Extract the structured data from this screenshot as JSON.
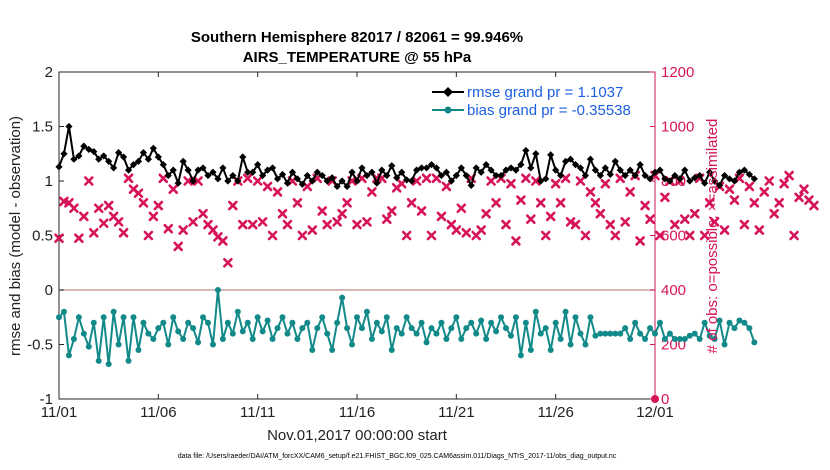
{
  "chart_data": {
    "type": "line",
    "title": "Southern Hemisphere 82017 / 82061 = 99.946%",
    "subtitle": "AIRS_TEMPERATURE @ 55 hPa",
    "xlabel": "Nov.01,2017 00:00:00 start",
    "ylabel": "rmse and bias (model - observation)",
    "ylabel_right": "# of obs: o=possible; ×=assimilated",
    "footnote": "data file: /Users/raeder/DAI/ATM_forcXX/CAM6_setup/f.e21.FHIST_BGC.f09_025.CAM6assim.011/Diags_NTrS_2017-11/obs_diag_output.nc",
    "xlim": [
      0,
      30
    ],
    "ylim": [
      -1,
      2
    ],
    "ylim_right": [
      0,
      1200
    ],
    "x_ticks": [
      0,
      5,
      10,
      15,
      20,
      25,
      30
    ],
    "x_tick_labels": [
      "11/01",
      "11/06",
      "11/11",
      "11/16",
      "11/21",
      "11/26",
      "12/01"
    ],
    "y_ticks": [
      -1,
      -0.5,
      0,
      0.5,
      1,
      1.5,
      2
    ],
    "y_tick_labels": [
      "-1",
      "-0.5",
      "0",
      "0.5",
      "1",
      "1.5",
      "2"
    ],
    "y_right_ticks": [
      0,
      200,
      400,
      600,
      800,
      1000,
      1200
    ],
    "y_right_tick_labels": [
      "0",
      "200",
      "400",
      "600",
      "800",
      "1000",
      "1200"
    ],
    "zero_line": 0,
    "legend_position": "top-right",
    "series": [
      {
        "name": "rmse grand pr = 1.1037",
        "color": "#000000",
        "marker": "diamond",
        "x_start": 0,
        "x_step": 0.25,
        "values": [
          1.13,
          1.25,
          1.5,
          1.2,
          1.23,
          1.32,
          1.29,
          1.27,
          1.2,
          1.23,
          1.18,
          1.12,
          1.26,
          1.22,
          1.1,
          1.15,
          1.18,
          1.26,
          1.2,
          1.3,
          1.22,
          1.15,
          1.05,
          1.1,
          0.98,
          1.18,
          1.1,
          1.0,
          1.1,
          1.12,
          1.05,
          1.08,
          1.02,
          1.12,
          1.0,
          1.05,
          1.0,
          1.22,
          1.08,
          1.08,
          1.15,
          1.05,
          1.1,
          1.12,
          1.02,
          1.06,
          0.98,
          1.08,
          1.02,
          0.97,
          1.05,
          1.0,
          1.08,
          1.05,
          1.0,
          1.03,
          0.95,
          1.0,
          0.95,
          1.08,
          1.0,
          1.12,
          1.05,
          1.08,
          0.98,
          1.1,
          1.05,
          1.14,
          1.03,
          1.08,
          1.01,
          1.0,
          1.1,
          1.12,
          1.12,
          1.15,
          1.12,
          1.05,
          1.08,
          1.0,
          1.05,
          1.12,
          1.05,
          0.96,
          1.12,
          1.08,
          1.15,
          1.1,
          1.05,
          1.05,
          1.1,
          1.12,
          1.1,
          1.15,
          1.28,
          1.12,
          1.25,
          1.0,
          1.02,
          1.24,
          1.1,
          1.05,
          1.18,
          1.2,
          1.15,
          1.12,
          1.05,
          1.2,
          1.1,
          1.05,
          1.12,
          1.06,
          1.18,
          1.1,
          1.05,
          1.1,
          1.05,
          1.15,
          1.05,
          1.02,
          1.08,
          1.1,
          1.02,
          1.0,
          1.05,
          1.02,
          1.1,
          1.0,
          1.03,
          1.05,
          0.98,
          1.08,
          1.0,
          0.96,
          1.05,
          1.02,
          1.0,
          1.08,
          1.1,
          1.06,
          1.02
        ]
      },
      {
        "name": "bias grand pr = -0.35538",
        "color": "#138a8a",
        "marker": "circle",
        "x_start": 0,
        "x_step": 0.25,
        "values": [
          -0.25,
          -0.2,
          -0.6,
          -0.45,
          -0.25,
          -0.4,
          -0.52,
          -0.3,
          -0.65,
          -0.25,
          -0.68,
          -0.2,
          -0.5,
          -0.25,
          -0.65,
          -0.25,
          -0.55,
          -0.3,
          -0.4,
          -0.45,
          -0.35,
          -0.3,
          -0.5,
          -0.25,
          -0.38,
          -0.45,
          -0.3,
          -0.35,
          -0.48,
          -0.25,
          -0.3,
          -0.5,
          0.0,
          -0.45,
          -0.3,
          -0.4,
          -0.2,
          -0.38,
          -0.3,
          -0.45,
          -0.25,
          -0.38,
          -0.28,
          -0.45,
          -0.35,
          -0.25,
          -0.4,
          -0.3,
          -0.45,
          -0.35,
          -0.3,
          -0.55,
          -0.35,
          -0.25,
          -0.4,
          -0.55,
          -0.3,
          -0.07,
          -0.35,
          -0.5,
          -0.25,
          -0.35,
          -0.2,
          -0.45,
          -0.3,
          -0.38,
          -0.25,
          -0.55,
          -0.35,
          -0.4,
          -0.25,
          -0.35,
          -0.4,
          -0.3,
          -0.48,
          -0.35,
          -0.4,
          -0.3,
          -0.45,
          -0.35,
          -0.25,
          -0.45,
          -0.35,
          -0.3,
          -0.4,
          -0.28,
          -0.45,
          -0.3,
          -0.38,
          -0.25,
          -0.35,
          -0.42,
          -0.25,
          -0.6,
          -0.3,
          -0.55,
          -0.2,
          -0.4,
          -0.35,
          -0.55,
          -0.3,
          -0.45,
          -0.2,
          -0.5,
          -0.25,
          -0.4,
          -0.5,
          -0.25,
          -0.42,
          -0.4,
          -0.4,
          -0.4,
          -0.4,
          -0.4,
          -0.35,
          -0.45,
          -0.3,
          -0.4,
          -0.45,
          -0.35,
          -0.4,
          -0.3,
          -0.45,
          -0.4,
          -0.45,
          -0.45,
          -0.45,
          -0.42,
          -0.4,
          -0.45,
          -0.3,
          -0.42,
          -0.45,
          -0.28,
          -0.5,
          -0.3,
          -0.35,
          -0.28,
          -0.3,
          -0.35,
          -0.48
        ]
      },
      {
        "name": "# of obs assimilated",
        "color": "#d6145a",
        "marker": "x",
        "axis": "right",
        "x_start": 0,
        "x_step": 0.25,
        "values": [
          590,
          725,
          720,
          700,
          590,
          670,
          800,
          610,
          700,
          645,
          710,
          670,
          650,
          610,
          810,
          770,
          755,
          720,
          600,
          670,
          710,
          810,
          625,
          770,
          560,
          620,
          800,
          650,
          800,
          680,
          640,
          620,
          595,
          580,
          500,
          710,
          800,
          640,
          810,
          640,
          800,
          650,
          780,
          600,
          760,
          680,
          640,
          800,
          720,
          600,
          780,
          620,
          810,
          690,
          640,
          800,
          650,
          680,
          720,
          800,
          640,
          810,
          650,
          760,
          810,
          810,
          660,
          690,
          775,
          790,
          600,
          720,
          800,
          690,
          810,
          600,
          810,
          670,
          780,
          640,
          620,
          700,
          610,
          810,
          600,
          620,
          680,
          800,
          720,
          810,
          640,
          790,
          580,
          730,
          810,
          660,
          800,
          720,
          600,
          670,
          790,
          720,
          810,
          650,
          640,
          800,
          600,
          760,
          720,
          680,
          790,
          640,
          600,
          810,
          650,
          760,
          820,
          580,
          710,
          660,
          820,
          600,
          740,
          800,
          640,
          800,
          660,
          600,
          680,
          810,
          600,
          720,
          650,
          780,
          620,
          770,
          730,
          810,
          640,
          780,
          720,
          620,
          760,
          800,
          680,
          720,
          790,
          820,
          600,
          740,
          770,
          730,
          710
        ]
      }
    ]
  }
}
